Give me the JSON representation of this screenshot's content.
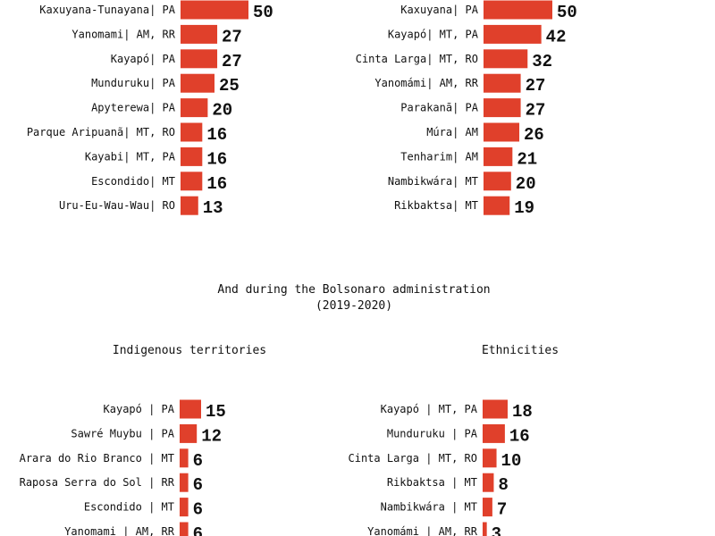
{
  "section_heading": {
    "line1": "And during the Bolsonaro administration",
    "line2": "(2019-2020)"
  },
  "colors": {
    "bar": "#e0402b",
    "text": "#111111",
    "background": "#ffffff"
  },
  "chart_data": [
    {
      "type": "bar",
      "orientation": "horizontal",
      "title": "",
      "categories": [
        "Kaxuyana-Tunayana| PA",
        "Yanomami| AM, RR",
        "Kayapó| PA",
        "Munduruku| PA",
        "Apyterewa| PA",
        "Parque Aripuanã| MT, RO",
        "Kayabi| MT, PA",
        "Escondido| MT",
        "Uru-Eu-Wau-Wau| RO"
      ],
      "values": [
        50,
        27,
        27,
        25,
        20,
        16,
        16,
        16,
        13
      ],
      "xlim": [
        0,
        50
      ]
    },
    {
      "type": "bar",
      "orientation": "horizontal",
      "title": "",
      "categories": [
        "Kaxuyana| PA",
        "Kayapó| MT, PA",
        "Cinta Larga| MT, RO",
        "Yanomámi| AM, RR",
        "Parakanã| PA",
        "Múra| AM",
        "Tenharim| AM",
        "Nambikwára| MT",
        "Rikbaktsa| MT"
      ],
      "values": [
        50,
        42,
        32,
        27,
        27,
        26,
        21,
        20,
        19
      ],
      "xlim": [
        0,
        50
      ]
    },
    {
      "type": "bar",
      "orientation": "horizontal",
      "title": "Indigenous territories",
      "categories": [
        "Kayapó | PA",
        "Sawré Muybu | PA",
        "Arara do Rio Branco | MT",
        "Raposa Serra do Sol | RR",
        "Escondido | MT",
        "Yanomami | AM, RR"
      ],
      "values": [
        15,
        12,
        6,
        6,
        6,
        6
      ],
      "xlim": [
        0,
        50
      ]
    },
    {
      "type": "bar",
      "orientation": "horizontal",
      "title": "Ethnicities",
      "categories": [
        "Kayapó | MT, PA",
        "Munduruku | PA",
        "Cinta Larga | MT, RO",
        "Rikbaktsa | MT",
        "Nambikwára | MT",
        "Yanomámi | AM, RR"
      ],
      "values": [
        18,
        16,
        10,
        8,
        7,
        3
      ],
      "xlim": [
        0,
        50
      ]
    }
  ]
}
